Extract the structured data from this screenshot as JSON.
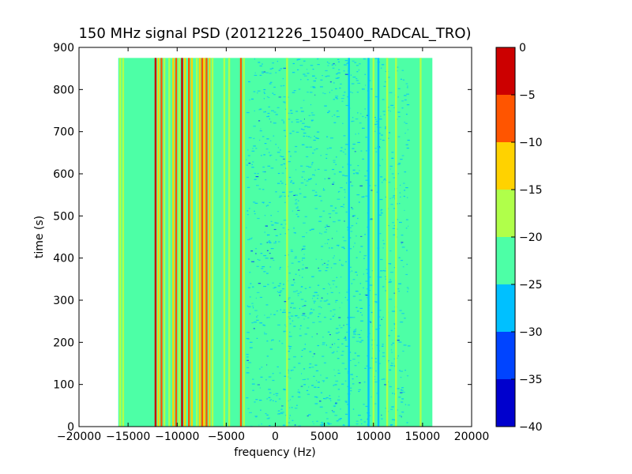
{
  "chart_data": {
    "type": "heatmap",
    "title": "150 MHz signal PSD (20121226_150400_RADCAL_TRO)",
    "xlabel": "frequency (Hz)",
    "ylabel": "time (s)",
    "xlim": [
      -20000,
      20000
    ],
    "ylim": [
      0,
      900
    ],
    "xticks": [
      -20000,
      -15000,
      -10000,
      -5000,
      0,
      5000,
      10000,
      15000,
      20000
    ],
    "xtick_labels": [
      "−20000",
      "−15000",
      "−10000",
      "−5000",
      "0",
      "5000",
      "10000",
      "15000",
      "20000"
    ],
    "yticks": [
      0,
      100,
      200,
      300,
      400,
      500,
      600,
      700,
      800,
      900
    ],
    "ytick_labels": [
      "0",
      "100",
      "200",
      "300",
      "400",
      "500",
      "600",
      "700",
      "800",
      "900"
    ],
    "data_extent": {
      "x": [
        -16000,
        16000
      ],
      "y": [
        0,
        875
      ]
    },
    "background_level": -22.5,
    "colorbar": {
      "range": [
        -40,
        0
      ],
      "ticks": [
        0,
        -5,
        -10,
        -15,
        -20,
        -25,
        -30,
        -35,
        -40
      ],
      "tick_labels": [
        "0",
        "−5",
        "−10",
        "−15",
        "−20",
        "−25",
        "−30",
        "−35",
        "−40"
      ],
      "bins": [
        {
          "from": -40,
          "to": -35,
          "color": "#0000cd"
        },
        {
          "from": -35,
          "to": -30,
          "color": "#0044ff"
        },
        {
          "from": -30,
          "to": -25,
          "color": "#00c0ff"
        },
        {
          "from": -25,
          "to": -20,
          "color": "#4dffa6"
        },
        {
          "from": -20,
          "to": -15,
          "color": "#b0ff4a"
        },
        {
          "from": -15,
          "to": -10,
          "color": "#ffd200"
        },
        {
          "from": -10,
          "to": -5,
          "color": "#ff5500"
        },
        {
          "from": -5,
          "to": 0,
          "color": "#cc0000"
        }
      ]
    },
    "bands": [
      {
        "f": -15800,
        "level": -17.5
      },
      {
        "f": -15500,
        "level": -17.5
      },
      {
        "f": -12200,
        "level": -2.5
      },
      {
        "f": -11900,
        "level": -12.5
      },
      {
        "f": -11600,
        "level": -7.5
      },
      {
        "f": -11300,
        "level": -17.5
      },
      {
        "f": -10800,
        "level": -17.5
      },
      {
        "f": -10400,
        "level": -12.5
      },
      {
        "f": -10100,
        "level": -7.5
      },
      {
        "f": -9800,
        "level": -17.5
      },
      {
        "f": -9500,
        "level": -2.5
      },
      {
        "f": -9200,
        "level": -12.5
      },
      {
        "f": -8800,
        "level": -7.5
      },
      {
        "f": -8500,
        "level": -12.5
      },
      {
        "f": -8000,
        "level": -17.5
      },
      {
        "f": -7700,
        "level": -12.5
      },
      {
        "f": -7450,
        "level": -7.5
      },
      {
        "f": -7250,
        "level": -12.5
      },
      {
        "f": -7000,
        "level": -7.5
      },
      {
        "f": -6700,
        "level": -12.5
      },
      {
        "f": -6400,
        "level": -17.5
      },
      {
        "f": -5200,
        "level": -17.5
      },
      {
        "f": -4700,
        "level": -17.5
      },
      {
        "f": -3500,
        "level": -7.5
      },
      {
        "f": -3200,
        "level": -17.5
      },
      {
        "f": 1200,
        "level": -17.5
      },
      {
        "f": 7500,
        "level": -27.5
      },
      {
        "f": 9500,
        "level": -27.5
      },
      {
        "f": 10000,
        "level": -17.5
      },
      {
        "f": 10500,
        "level": -27.5
      },
      {
        "f": 11400,
        "level": -17.5
      },
      {
        "f": 12300,
        "level": -17.5
      },
      {
        "f": 14800,
        "level": -17.5
      }
    ]
  }
}
